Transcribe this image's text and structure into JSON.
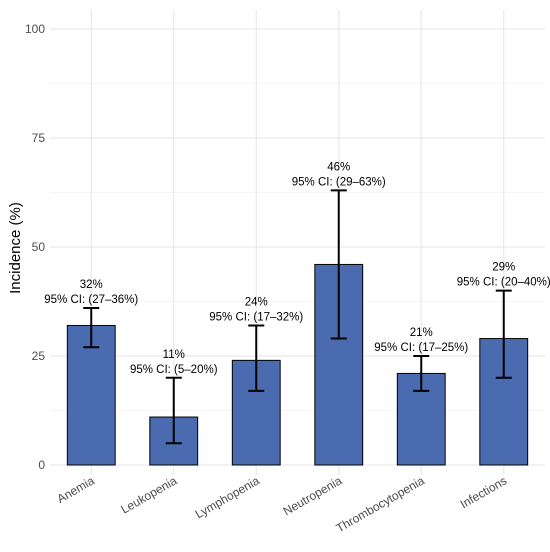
{
  "chart_data": {
    "type": "bar",
    "title": "",
    "xlabel": "",
    "ylabel": "Incidence (%)",
    "ylim": [
      0,
      100
    ],
    "yticks": [
      0,
      25,
      50,
      75,
      100
    ],
    "grid": true,
    "bar_color": "#4a6bb0",
    "categories": [
      "Anemia",
      "Leukopenia",
      "Lymphopenia",
      "Neutropenia",
      "Thrombocytopenia",
      "Infections"
    ],
    "values": [
      32,
      11,
      24,
      46,
      21,
      29
    ],
    "ci_lower": [
      27,
      5,
      17,
      29,
      17,
      20
    ],
    "ci_upper": [
      36,
      20,
      32,
      63,
      25,
      40
    ],
    "value_labels": [
      "32%",
      "11%",
      "24%",
      "46%",
      "21%",
      "29%"
    ],
    "ci_labels": [
      "95% CI: (27–36%)",
      "95% CI: (5–20%)",
      "95% CI: (17–32%)",
      "95% CI: (29–63%)",
      "95% CI: (17–25%)",
      "95% CI: (20–40%)"
    ]
  }
}
